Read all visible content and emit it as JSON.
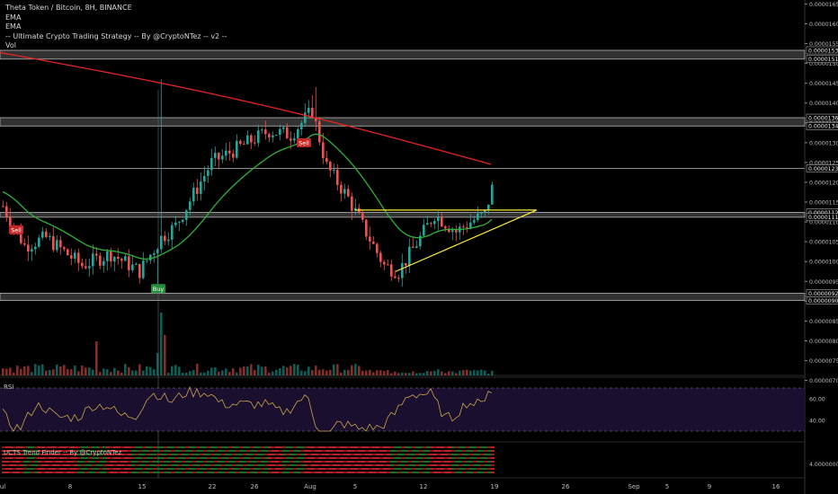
{
  "legend": {
    "symbol": "Theta Token / Bitcoin, 8H, BINANCE",
    "ema1": "EMA",
    "ema2": "EMA",
    "strategy": "-- Ultimate Crypto Trading Strategy -- By @CryptoNTez -- v2 --",
    "vol": "Vol"
  },
  "rsi_label": "RSI",
  "trend_label": "UCTS Trend Finder -- By @CryptoNTez",
  "colors": {
    "background": "#000000",
    "up": "#26a69a",
    "down": "#ef5350",
    "ema_long": "#e52424",
    "ema_short": "#2fb23a",
    "triangle": "#ffeb3b",
    "rsi_line": "#c9a64a",
    "rsi_band": "#1a0f2e",
    "zone": "#5b5b5b"
  },
  "chart_data": {
    "type": "candlestick",
    "price_axis_ticks": [
      "0.00001650",
      "0.00001600",
      "0.00001550",
      "0.00001500",
      "0.00001450",
      "0.00001400",
      "0.00001350",
      "0.00001300",
      "0.00001250",
      "0.00001200",
      "0.00001150",
      "0.00001100",
      "0.00001050",
      "0.00001000",
      "0.00000950",
      "0.00000900",
      "0.00000850",
      "0.00000800",
      "0.00000750",
      "0.00000700"
    ],
    "price_range": [
      6.9e-06,
      1.66e-05
    ],
    "price_levels": [
      {
        "label": "0.00001533",
        "value": 1.533e-05
      },
      {
        "label": "0.00001511",
        "value": 1.511e-05
      },
      {
        "label": "0.00001363",
        "value": 1.363e-05
      },
      {
        "label": "0.00001342",
        "value": 1.342e-05
      },
      {
        "label": "0.00001235",
        "value": 1.235e-05
      },
      {
        "label": "0.00001124",
        "value": 1.124e-05
      },
      {
        "label": "0.00001112",
        "value": 1.112e-05
      },
      {
        "label": "0.00000920",
        "value": 9.2e-06
      },
      {
        "label": "0.00000902",
        "value": 9.02e-06
      }
    ],
    "zones": [
      [
        1.511e-05,
        1.533e-05
      ],
      [
        1.342e-05,
        1.363e-05
      ],
      [
        1.112e-05,
        1.124e-05
      ],
      [
        9.02e-06,
        9.2e-06
      ]
    ],
    "x_axis_labels": [
      "Jul",
      "8",
      "15",
      "22",
      "26",
      "Aug",
      "5",
      "12",
      "19",
      "26",
      "Sep",
      "5",
      "9",
      "16"
    ],
    "signals": [
      {
        "text": "Sell",
        "type": "sell",
        "date": "Jul 1"
      },
      {
        "text": "Buy",
        "type": "buy",
        "date": "Jul 15"
      },
      {
        "text": "Sell",
        "type": "sell",
        "date": "Jul 30"
      }
    ],
    "rsi_ticks": [
      "60.00",
      "40.00"
    ],
    "rsi_range": [
      20,
      80
    ],
    "rsi_bands": [
      70,
      30
    ],
    "trend_axis_tick": "4.00000000",
    "series": [
      {
        "name": "EMA",
        "type": "line",
        "data_key": "ema_long"
      },
      {
        "name": "EMA",
        "type": "line",
        "data_key": "ema_short"
      }
    ]
  }
}
